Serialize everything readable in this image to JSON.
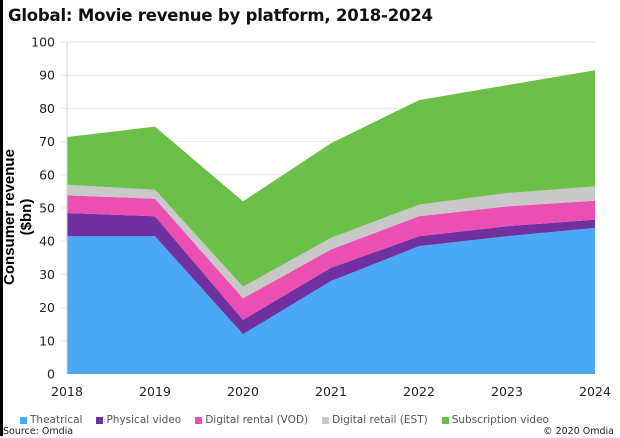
{
  "chart_data": {
    "type": "area",
    "stacked": true,
    "title": "Global: Movie revenue by platform, 2018-2024",
    "xlabel": "",
    "ylabel": "Consumer revenue ($bn)",
    "ylim": [
      0,
      100
    ],
    "yticks": [
      "0",
      "10",
      "20",
      "30",
      "40",
      "50",
      "60",
      "70",
      "80",
      "90",
      "100"
    ],
    "ytick_values": [
      0,
      10,
      20,
      30,
      40,
      50,
      60,
      70,
      80,
      90,
      100
    ],
    "grid": true,
    "legend_position": "bottom",
    "x": [
      "2018",
      "2019",
      "2020",
      "2021",
      "2022",
      "2023",
      "2024"
    ],
    "series": [
      {
        "name": "Theatrical",
        "color": "#4BA8F5",
        "values": [
          41.5,
          41.5,
          12.0,
          28.0,
          38.5,
          41.5,
          44.0
        ]
      },
      {
        "name": "Physical video",
        "color": "#7030A0",
        "values": [
          7.0,
          6.0,
          4.3,
          4.0,
          3.0,
          3.0,
          2.5
        ]
      },
      {
        "name": "Digital rental (VOD)",
        "color": "#EC4FB2",
        "values": [
          5.3,
          5.3,
          6.5,
          5.5,
          6.0,
          6.0,
          5.7
        ]
      },
      {
        "name": "Digital retail (EST)",
        "color": "#C8C8C8",
        "values": [
          3.2,
          2.7,
          3.5,
          3.5,
          3.5,
          4.0,
          4.3
        ]
      },
      {
        "name": "Subscription video",
        "color": "#6CC04A",
        "values": [
          14.4,
          19.0,
          25.7,
          28.5,
          31.5,
          32.5,
          35.0
        ]
      }
    ]
  },
  "footer": {
    "source": "Source: Omdia",
    "copyright": "© 2020 Omdia"
  }
}
